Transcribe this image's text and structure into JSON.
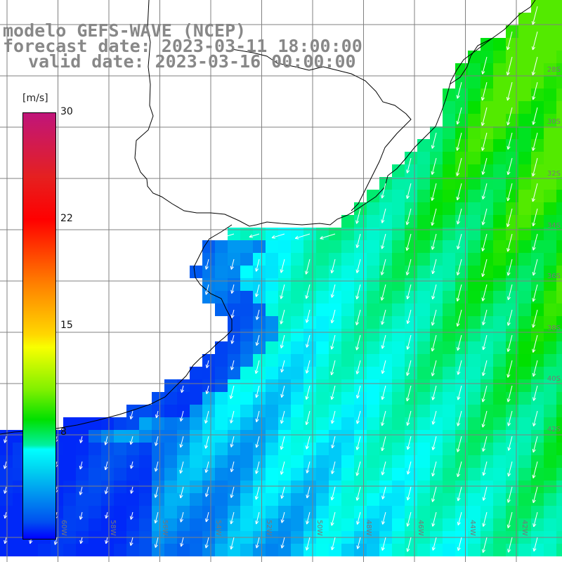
{
  "title": {
    "line1": "modelo GEFS-WAVE (NCEP)",
    "line2": "forecast date: 2023-03-11 18:00:00",
    "line3": "valid date: 2023-03-16 00:00:00"
  },
  "colorbar": {
    "unit": "[m/s]",
    "ticks": [
      {
        "label": "30",
        "value": 30
      },
      {
        "label": "22",
        "value": 22
      },
      {
        "label": "15",
        "value": 15
      },
      {
        "label": "8",
        "value": 8
      }
    ],
    "range": [
      0,
      30
    ],
    "colors": [
      "#0000ff",
      "#0090f0",
      "#00ffff",
      "#00e000",
      "#f8ff00",
      "#ff7f00",
      "#ff0000",
      "#c0157a"
    ]
  },
  "axes": {
    "lon_labels": [
      "60W",
      "58W",
      "56W",
      "54W",
      "52W",
      "50W",
      "48W",
      "46W",
      "44W",
      "42W"
    ],
    "lat_labels": [
      "28S",
      "30S",
      "32S",
      "34S",
      "36S",
      "38S",
      "40S",
      "42S"
    ]
  },
  "colors": {
    "grid": "#808080",
    "coast": "#000000",
    "arrow": "#ffffff",
    "title": "#888888"
  }
}
